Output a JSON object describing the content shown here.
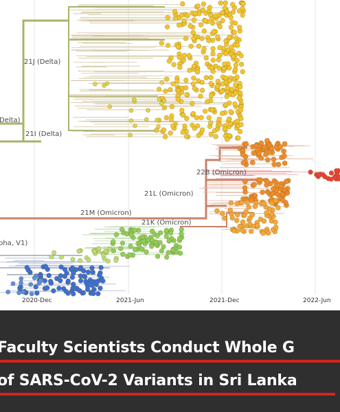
{
  "figure": {
    "clade_labels": [
      "21J (Delta)",
      "Delta)",
      "21I (Delta)",
      "22B (Omicron)",
      "21L (Omicron)",
      "21M (Omicron)",
      "21K (Omicron)",
      "pha, V1)"
    ],
    "x_axis_ticks": [
      "2020-Dec",
      "2021-Jun",
      "2021-Dec",
      "2022-Jun"
    ],
    "colors": {
      "delta_yellow": "#f2c531",
      "omicron_orange": "#f08c2d",
      "omicron_red": "#e8423a",
      "alpha_green": "#8ccf5d",
      "early_blue": "#3a6fd8",
      "delta_branch": "#a8b26a",
      "omicron_branch": "#c8826a",
      "banner_bg": "#2f2f2f",
      "rule_red": "#d9231d"
    }
  },
  "banner": {
    "line1": "Faculty Scientists Conduct Whole G",
    "line2": "of SARS-CoV-2 Variants in Sri Lanka"
  }
}
